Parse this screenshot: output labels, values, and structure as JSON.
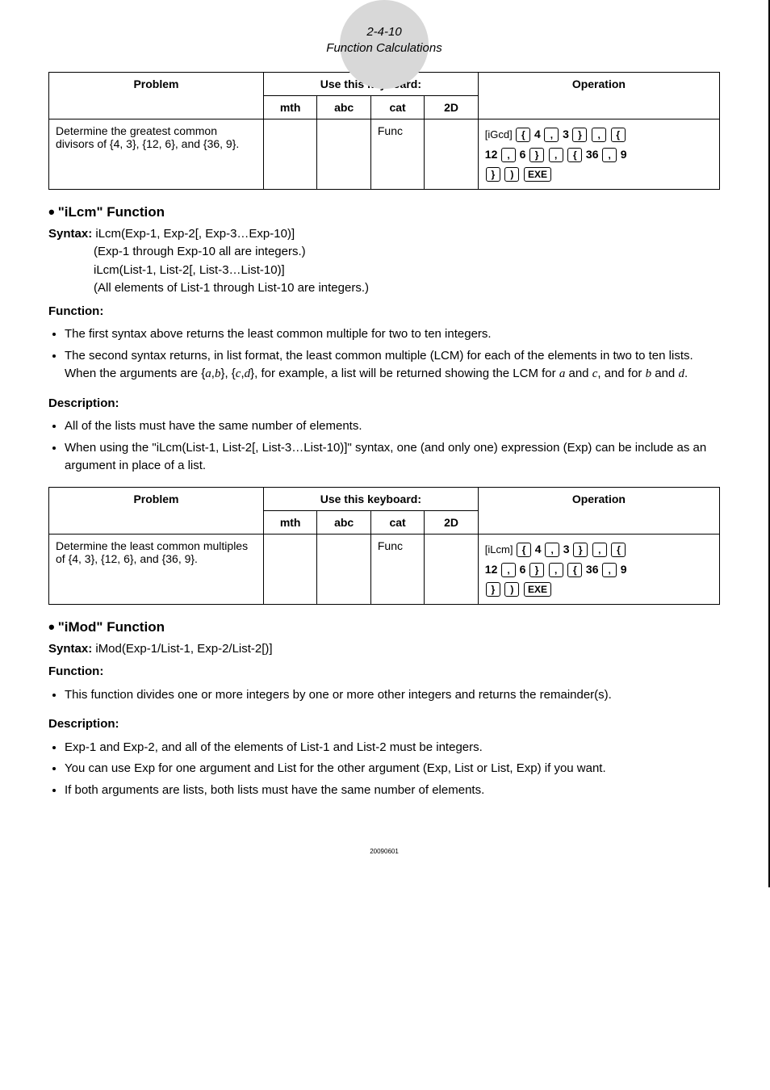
{
  "header": {
    "page_ref": "2-4-10",
    "title": "Function Calculations"
  },
  "table1": {
    "head_problem": "Problem",
    "head_keyboard": "Use this keyboard:",
    "head_operation": "Operation",
    "sub_mth": "mth",
    "sub_abc": "abc",
    "sub_cat": "cat",
    "sub_2d": "2D",
    "row": {
      "problem": "Determine the greatest common divisors of {4, 3}, {12, 6}, and {36, 9}.",
      "cat": "Func",
      "op_prefix": "[iGcd]"
    }
  },
  "ilcm": {
    "heading": "\"iLcm\" Function",
    "syntax_label": "Syntax:",
    "syntax1": "iLcm(Exp-1, Exp-2[, Exp-3…Exp-10)]",
    "syntax1_note": "(Exp-1 through Exp-10 all are integers.)",
    "syntax2": "iLcm(List-1, List-2[, List-3…List-10)]",
    "syntax2_note": "(All elements of List-1 through List-10 are integers.)",
    "function_label": "Function:",
    "function_b1": "The first syntax above returns the least common multiple for two to ten integers.",
    "function_b2_a": "The second syntax returns, in list format, the least common multiple (LCM) for each of the elements in two to ten lists. When the arguments are {",
    "function_b2_b": "}, {",
    "function_b2_c": "}, for example, a list will be returned showing the LCM for ",
    "function_b2_d": " and ",
    "function_b2_e": ", and for ",
    "function_b2_f": " and ",
    "function_b2_g": ".",
    "var_a": "a",
    "var_b": "b",
    "var_c": "c",
    "var_d": "d",
    "desc_label": "Description:",
    "desc_b1": "All of the lists must have the same number of elements.",
    "desc_b2": "When using the \"iLcm(List-1, List-2[, List-3…List-10)]\" syntax, one (and only one) expression (Exp) can be include as an argument in place of a list."
  },
  "table2": {
    "head_problem": "Problem",
    "head_keyboard": "Use this keyboard:",
    "head_operation": "Operation",
    "sub_mth": "mth",
    "sub_abc": "abc",
    "sub_cat": "cat",
    "sub_2d": "2D",
    "row": {
      "problem": "Determine the least common multiples of {4, 3}, {12, 6}, and {36, 9}.",
      "cat": "Func",
      "op_prefix": "[iLcm]"
    }
  },
  "imod": {
    "heading": "\"iMod\" Function",
    "syntax_label": "Syntax:",
    "syntax1": "iMod(Exp-1/List-1, Exp-2/List-2[)]",
    "function_label": "Function:",
    "function_b1": "This function divides one or more integers by one or more other integers and returns the remainder(s).",
    "desc_label": "Description:",
    "desc_b1": "Exp-1 and Exp-2, and all of the elements of List-1 and List-2 must be integers.",
    "desc_b2": "You can use Exp for one argument and List for the other argument (Exp, List or List, Exp) if you want.",
    "desc_b3": "If both arguments are lists, both lists must have the same number of elements."
  },
  "keys": {
    "lbrace": "{",
    "rbrace": "}",
    "comma": ",",
    "lparen": "(",
    "rparen": ")",
    "exe": "EXE"
  },
  "nums": {
    "n4": "4",
    "n3": "3",
    "n12": "12",
    "n6": "6",
    "n36": "36",
    "n9": "9"
  },
  "footer": "20090601"
}
